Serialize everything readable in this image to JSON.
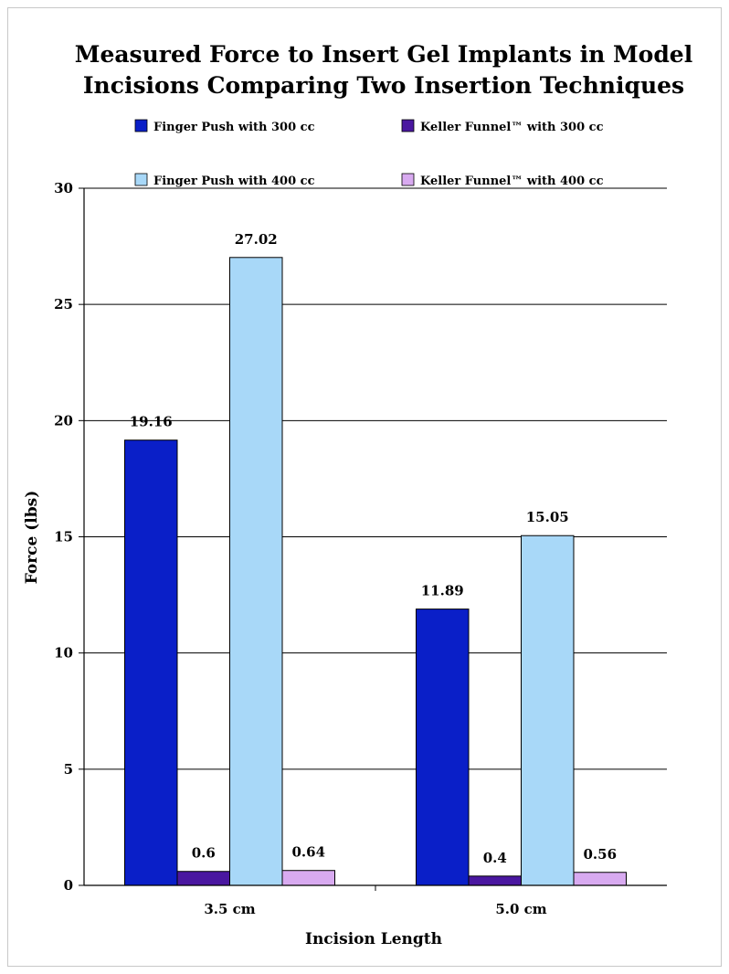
{
  "chart_data": {
    "type": "bar",
    "title_lines": [
      "Measured Force to Insert Gel Implants in Model",
      "Incisions Comparing Two Insertion Techniques"
    ],
    "xlabel": "Incision Length",
    "ylabel": "Force (lbs)",
    "categories": [
      "3.5 cm",
      "5.0 cm"
    ],
    "ylim": [
      0,
      30
    ],
    "yticks": [
      0,
      5,
      10,
      15,
      20,
      25,
      30
    ],
    "grid": true,
    "legend_position": "top",
    "series": [
      {
        "name": "Finger Push with 300 cc",
        "color": "#0a1fc8",
        "values": [
          19.16,
          11.89
        ],
        "labels": [
          "19.16",
          "11.89"
        ]
      },
      {
        "name": "Keller Funnel™ with 300 cc",
        "color": "#4a17a0",
        "values": [
          0.6,
          0.4
        ],
        "labels": [
          "0.6",
          "0.4"
        ]
      },
      {
        "name": "Finger Push with 400 cc",
        "color": "#a8d8f8",
        "values": [
          27.02,
          15.05
        ],
        "labels": [
          "27.02",
          "15.05"
        ]
      },
      {
        "name": "Keller Funnel™ with 400 cc",
        "color": "#d8aaf0",
        "values": [
          0.64,
          0.56
        ],
        "labels": [
          "0.64",
          "0.56"
        ]
      }
    ]
  }
}
